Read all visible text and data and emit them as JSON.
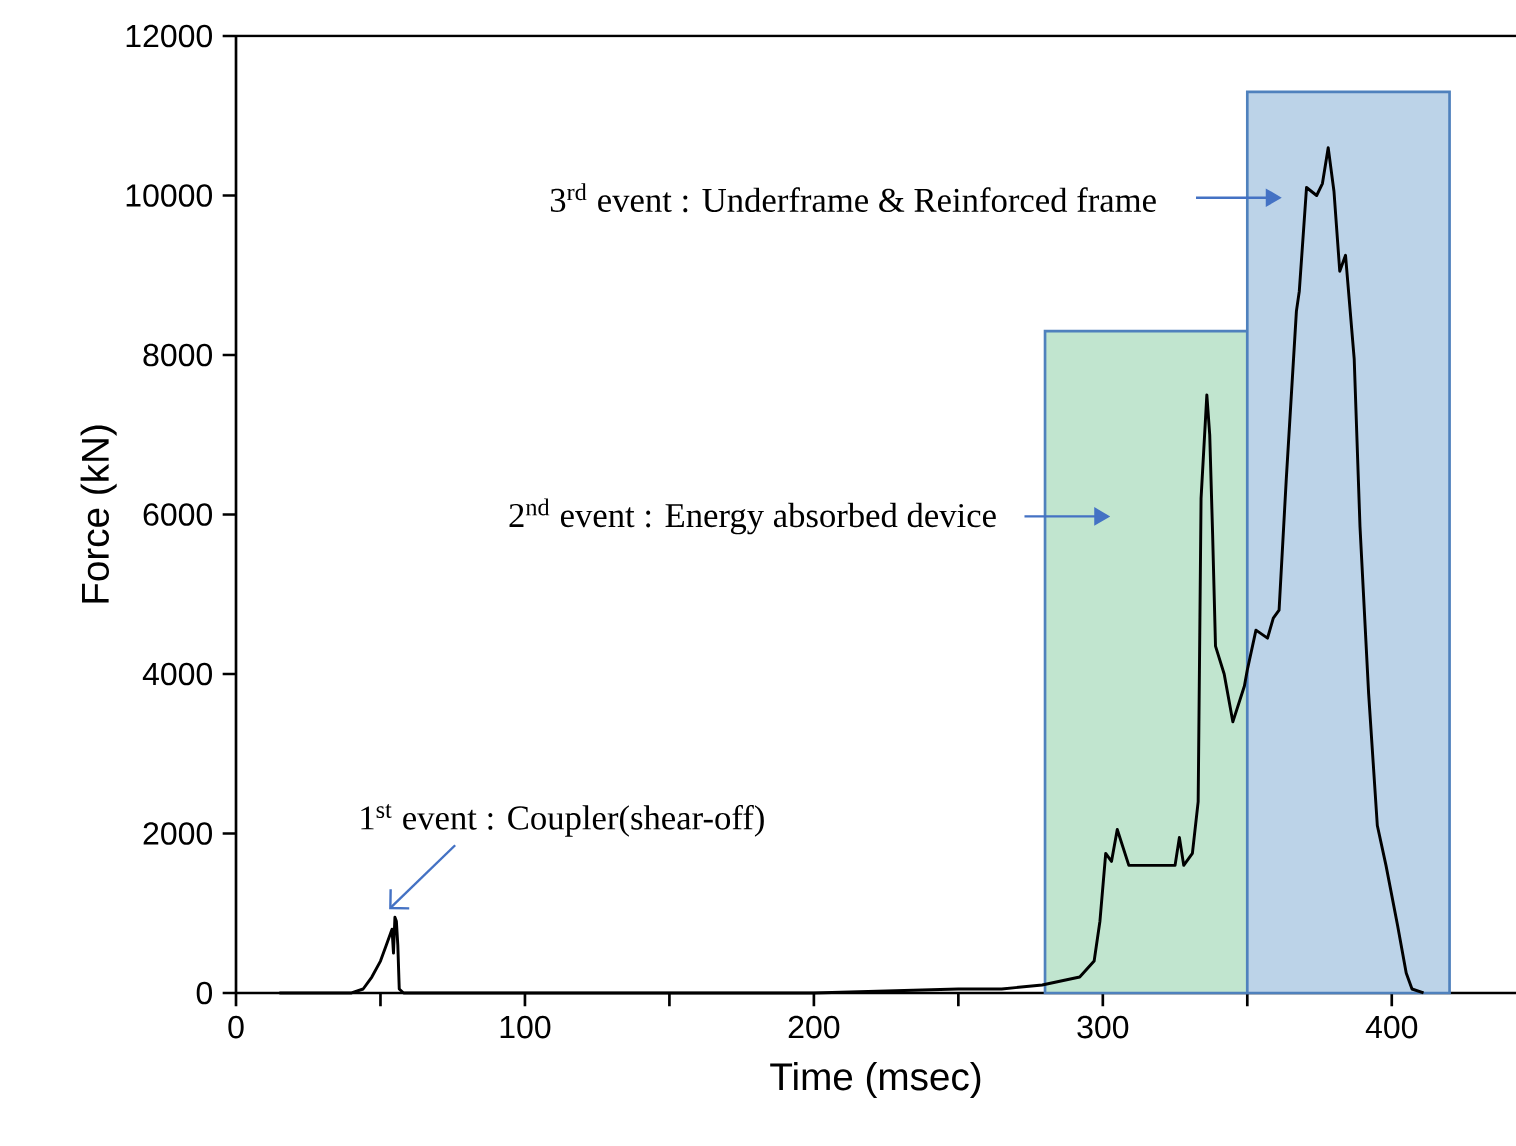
{
  "chart_data": {
    "type": "line",
    "xlabel": "Time (msec)",
    "ylabel": "Force (kN)",
    "xlim": [
      0,
      443
    ],
    "ylim": [
      0,
      12000
    ],
    "xticks": [
      0,
      {
        "value": 50,
        "label": null
      },
      100,
      {
        "value": 150,
        "label": null
      },
      200,
      {
        "value": 250,
        "label": null
      },
      300,
      {
        "value": 350,
        "label": null
      },
      400
    ],
    "yticks": [
      0,
      2000,
      4000,
      6000,
      8000,
      10000,
      12000
    ],
    "series": [
      {
        "type": "bar",
        "x": [
          315,
          385
        ],
        "values": [
          8300,
          11300
        ],
        "colors": [
          "#c1e5cf",
          "#bcd3e8"
        ]
      },
      {
        "color": "#000000",
        "x": [
          15,
          40,
          44,
          47,
          50,
          52,
          54,
          54.5,
          55,
          55.5,
          56,
          56.5,
          58,
          100,
          150,
          200,
          250,
          265,
          279,
          292,
          297,
          299,
          301,
          303,
          305,
          309,
          317,
          325,
          326.5,
          328,
          331,
          333,
          334,
          336,
          337,
          338,
          339,
          342,
          345,
          349,
          350,
          353,
          357,
          359,
          361,
          363.5,
          367,
          368,
          370.5,
          374,
          376,
          378,
          380,
          382,
          384,
          387,
          389,
          392,
          395,
          398,
          402,
          405,
          407,
          411
        ],
        "values": [
          0,
          0,
          50,
          200,
          400,
          600,
          800,
          500,
          950,
          900,
          600,
          50,
          0,
          0,
          0,
          0,
          50,
          50,
          100,
          200,
          400,
          900,
          1750,
          1650,
          2050,
          1600,
          1600,
          1600,
          1950,
          1600,
          1750,
          2400,
          6200,
          7500,
          7000,
          5750,
          4350,
          4000,
          3400,
          3850,
          4050,
          4550,
          4450,
          4700,
          4800,
          6450,
          8550,
          8800,
          10100,
          10000,
          10150,
          10600,
          10050,
          9050,
          9250,
          7950,
          5850,
          3750,
          2100,
          1600,
          850,
          250,
          50,
          0
        ]
      }
    ],
    "annotations": [
      {
        "text": "1$^{st}$ event : Coupler(shear-off)",
        "x": 53,
        "y": 1050
      },
      "2$^{nd}$ event : Energy absorbed device",
      "3$^{rd}$ event : Underframe & Reinforced frame"
    ]
  }
}
